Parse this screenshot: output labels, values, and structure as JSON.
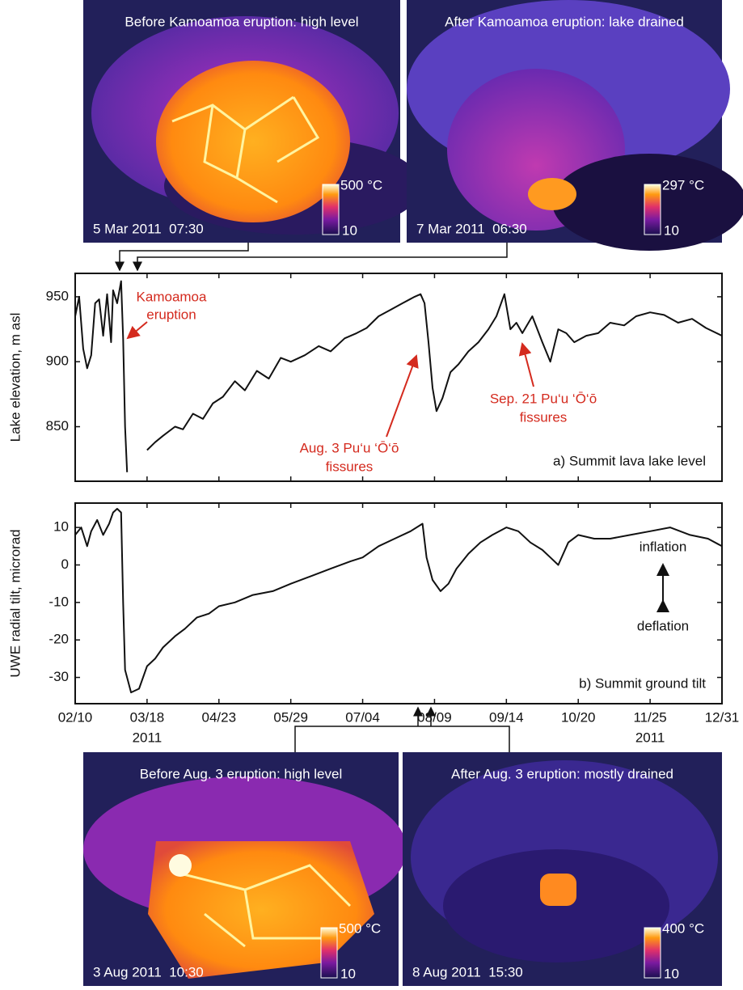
{
  "images": [
    {
      "caption": "Before Kamoamoa eruption: high level",
      "timestamp": "5 Mar 2011  07:30",
      "scale_max": "500 °C",
      "scale_min": "10"
    },
    {
      "caption": "After Kamoamoa eruption: lake drained",
      "timestamp": "7 Mar 2011  06:30",
      "scale_max": "297 °C",
      "scale_min": "10"
    },
    {
      "caption": "Before Aug. 3 eruption: high level",
      "timestamp": "3 Aug 2011  10:30",
      "scale_max": "500 °C",
      "scale_min": "10"
    },
    {
      "caption": "After Aug. 3 eruption: mostly drained",
      "timestamp": "8 Aug 2011  15:30",
      "scale_max": "400 °C",
      "scale_min": "10"
    }
  ],
  "chart_data": [
    {
      "type": "line",
      "y_label": "Lake elevation, m asl",
      "panel_label": "a) Summit lava lake level",
      "color": "#111111",
      "xlim": [
        "2011-02-10",
        "2011-12-31"
      ],
      "ylim": [
        808,
        968
      ],
      "yticks": [
        850,
        900,
        950
      ],
      "annotations": [
        [
          "Kamoamoa",
          "eruption"
        ],
        [
          "Aug. 3 Pu‘u ‘Ō‘ō",
          "fissures"
        ],
        [
          "Sep. 21 Pu‘u ‘Ō‘ō",
          "fissures"
        ]
      ],
      "x": [
        "2011-02-10",
        "2011-02-12",
        "2011-02-14",
        "2011-02-16",
        "2011-02-18",
        "2011-02-20",
        "2011-02-22",
        "2011-02-24",
        "2011-02-26",
        "2011-02-28",
        "2011-03-01",
        "2011-03-03",
        "2011-03-05",
        "2011-03-06",
        "2011-03-07",
        "2011-03-08",
        "2011-03-12",
        "2011-03-18",
        "2011-03-22",
        "2011-03-26",
        "2011-04-01",
        "2011-04-05",
        "2011-04-10",
        "2011-04-15",
        "2011-04-20",
        "2011-04-25",
        "2011-05-01",
        "2011-05-06",
        "2011-05-12",
        "2011-05-18",
        "2011-05-24",
        "2011-05-29",
        "2011-06-05",
        "2011-06-12",
        "2011-06-18",
        "2011-06-25",
        "2011-07-01",
        "2011-07-06",
        "2011-07-12",
        "2011-07-18",
        "2011-07-24",
        "2011-07-30",
        "2011-08-02",
        "2011-08-04",
        "2011-08-06",
        "2011-08-08",
        "2011-08-10",
        "2011-08-13",
        "2011-08-17",
        "2011-08-21",
        "2011-08-26",
        "2011-08-31",
        "2011-09-05",
        "2011-09-09",
        "2011-09-13",
        "2011-09-16",
        "2011-09-19",
        "2011-09-22",
        "2011-09-27",
        "2011-10-02",
        "2011-10-06",
        "2011-10-10",
        "2011-10-14",
        "2011-10-18",
        "2011-10-24",
        "2011-10-30",
        "2011-11-05",
        "2011-11-12",
        "2011-11-18",
        "2011-11-25",
        "2011-12-02",
        "2011-12-09",
        "2011-12-16",
        "2011-12-23",
        "2011-12-31"
      ],
      "values": [
        935,
        950,
        910,
        895,
        905,
        945,
        948,
        920,
        952,
        915,
        955,
        945,
        962,
        918,
        850,
        815,
        null,
        832,
        838,
        843,
        850,
        848,
        860,
        856,
        868,
        873,
        885,
        878,
        893,
        887,
        903,
        900,
        905,
        912,
        908,
        918,
        922,
        926,
        935,
        940,
        945,
        950,
        952,
        945,
        915,
        880,
        862,
        872,
        892,
        898,
        908,
        915,
        925,
        935,
        952,
        925,
        930,
        922,
        935,
        915,
        900,
        925,
        922,
        915,
        920,
        922,
        930,
        928,
        935,
        938,
        936,
        930,
        933,
        926,
        920
      ]
    },
    {
      "type": "line",
      "y_label": "UWE radial tilt, microrad",
      "panel_label": "b) Summit ground tilt",
      "color": "#111111",
      "inflation_label": "inflation",
      "deflation_label": "deflation",
      "year_label": "2011",
      "xlim": [
        "2011-02-10",
        "2011-12-31"
      ],
      "ylim": [
        -37,
        16.5
      ],
      "yticks": [
        -30,
        -20,
        -10,
        0,
        10
      ],
      "xticks": [
        {
          "value": "2011-02-10",
          "label": "02/10"
        },
        {
          "value": "2011-03-18",
          "label": "03/18"
        },
        {
          "value": "2011-04-23",
          "label": "04/23"
        },
        {
          "value": "2011-05-29",
          "label": "05/29"
        },
        {
          "value": "2011-07-04",
          "label": "07/04"
        },
        {
          "value": "2011-08-09",
          "label": "08/09"
        },
        {
          "value": "2011-09-14",
          "label": "09/14"
        },
        {
          "value": "2011-10-20",
          "label": "10/20"
        },
        {
          "value": "2011-11-25",
          "label": "11/25"
        },
        {
          "value": "2011-12-31",
          "label": "12/31"
        }
      ],
      "x": [
        "2011-02-10",
        "2011-02-13",
        "2011-02-16",
        "2011-02-18",
        "2011-02-21",
        "2011-02-24",
        "2011-02-27",
        "2011-03-01",
        "2011-03-03",
        "2011-03-05",
        "2011-03-06",
        "2011-03-07",
        "2011-03-10",
        "2011-03-14",
        "2011-03-18",
        "2011-03-22",
        "2011-03-26",
        "2011-04-01",
        "2011-04-06",
        "2011-04-12",
        "2011-04-18",
        "2011-04-23",
        "2011-05-01",
        "2011-05-10",
        "2011-05-20",
        "2011-05-29",
        "2011-06-08",
        "2011-06-18",
        "2011-06-28",
        "2011-07-04",
        "2011-07-12",
        "2011-07-20",
        "2011-07-28",
        "2011-08-03",
        "2011-08-05",
        "2011-08-08",
        "2011-08-12",
        "2011-08-16",
        "2011-08-20",
        "2011-08-26",
        "2011-09-01",
        "2011-09-07",
        "2011-09-14",
        "2011-09-20",
        "2011-09-26",
        "2011-10-02",
        "2011-10-06",
        "2011-10-10",
        "2011-10-15",
        "2011-10-20",
        "2011-10-28",
        "2011-11-05",
        "2011-11-15",
        "2011-11-25",
        "2011-12-05",
        "2011-12-15",
        "2011-12-24",
        "2011-12-31"
      ],
      "values": [
        8,
        10,
        5,
        9,
        12,
        8,
        11,
        14,
        15,
        14,
        -10,
        -28,
        -34,
        -33,
        -27,
        -25,
        -22,
        -19,
        -17,
        -14,
        -13,
        -11,
        -10,
        -8,
        -7,
        -5,
        -3,
        -1,
        1,
        2,
        5,
        7,
        9,
        11,
        2,
        -4,
        -7,
        -5,
        -1,
        3,
        6,
        8,
        10,
        9,
        6,
        4,
        2,
        0,
        6,
        8,
        7,
        7,
        8,
        9,
        10,
        8,
        7,
        5
      ]
    }
  ]
}
